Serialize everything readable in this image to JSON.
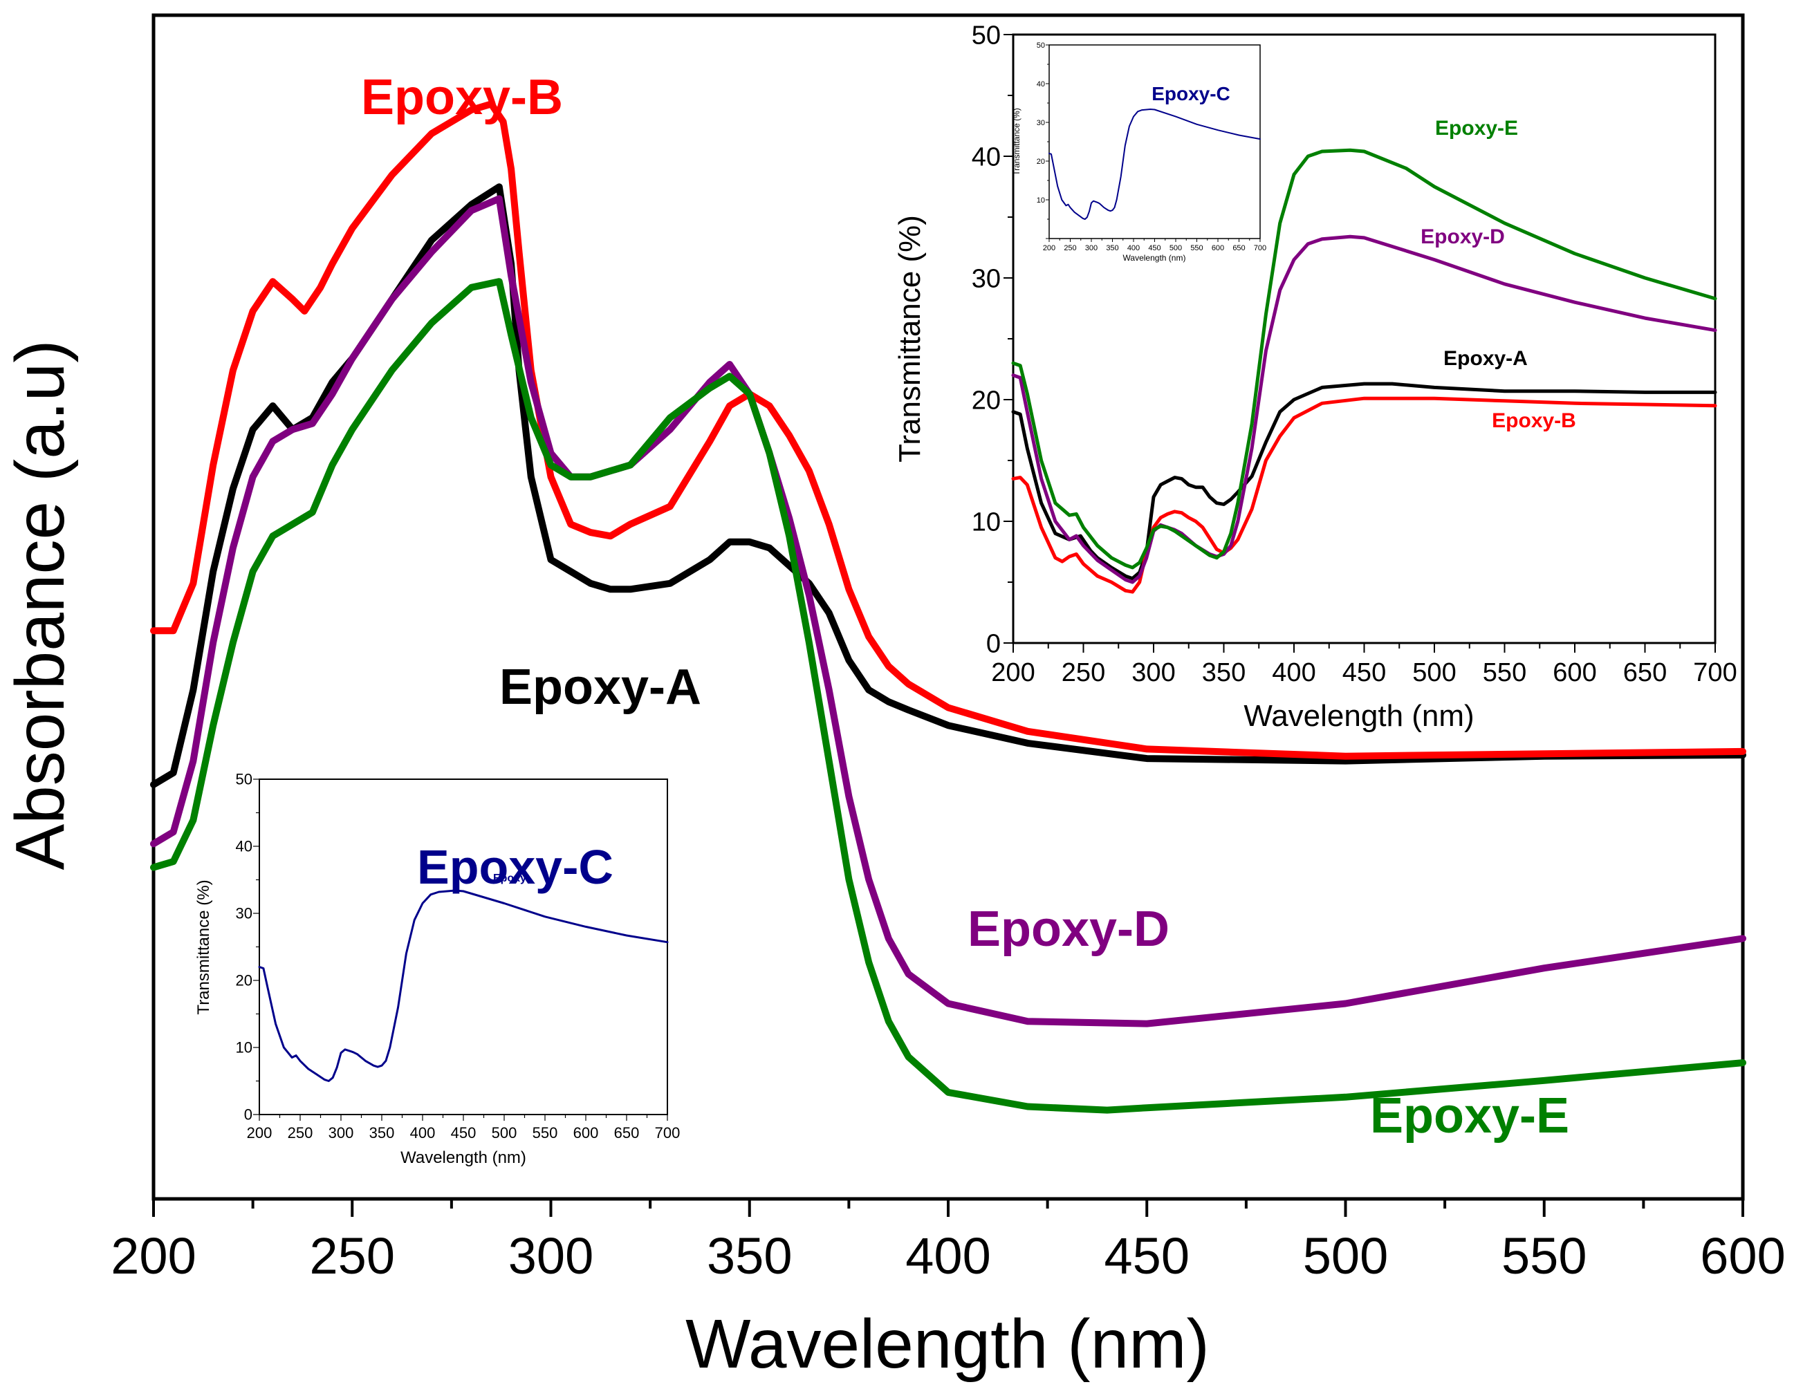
{
  "chart_data": [
    {
      "id": "main",
      "type": "line",
      "title": "",
      "xlabel": "Wavelength (nm)",
      "ylabel": "Absorbance (a.u)",
      "xlim": [
        200,
        600
      ],
      "ylim": [
        0,
        100
      ],
      "grid": false,
      "xticks": [
        200,
        250,
        300,
        350,
        400,
        450,
        500,
        550,
        600
      ],
      "xtick_labels": [
        "200",
        "250",
        "300",
        "350",
        "400",
        "450",
        "500",
        "550",
        "600"
      ],
      "series": [
        {
          "name": "Epoxy-A",
          "label": "Epoxy-A",
          "color": "#000000",
          "x": [
            200,
            205,
            210,
            215,
            220,
            225,
            230,
            235,
            240,
            245,
            250,
            260,
            270,
            280,
            287,
            290,
            292,
            295,
            300,
            305,
            310,
            315,
            320,
            330,
            340,
            345,
            350,
            355,
            360,
            365,
            370,
            375,
            380,
            385,
            390,
            400,
            420,
            450,
            500,
            550,
            600
          ],
          "y": [
            35,
            36,
            43,
            53,
            60,
            65,
            67,
            65,
            66,
            69,
            71,
            76,
            81,
            84,
            85.5,
            79,
            70,
            61,
            54,
            53,
            52,
            51.5,
            51.5,
            52,
            54,
            55.5,
            55.5,
            55,
            53.5,
            52,
            49.5,
            45.5,
            43,
            42,
            41.3,
            40,
            38.5,
            37.2,
            37.0,
            37.4,
            37.5
          ]
        },
        {
          "name": "Epoxy-B",
          "label": "Epoxy-B",
          "color": "#ff0000",
          "x": [
            200,
            205,
            210,
            215,
            220,
            225,
            230,
            235,
            238,
            242,
            245,
            250,
            260,
            270,
            280,
            285,
            288,
            290,
            292,
            295,
            300,
            305,
            310,
            315,
            320,
            330,
            340,
            345,
            350,
            355,
            360,
            365,
            370,
            375,
            380,
            385,
            390,
            400,
            420,
            450,
            500,
            550,
            600
          ],
          "y": [
            48,
            48,
            52,
            62,
            70,
            75,
            77.5,
            76,
            75,
            77,
            79,
            82,
            86.5,
            90,
            92,
            92.5,
            91,
            87,
            80,
            70,
            61,
            57,
            56.3,
            56,
            57,
            58.5,
            64,
            67,
            68,
            67,
            64.5,
            61.5,
            57,
            51.5,
            47.5,
            45,
            43.5,
            41.5,
            39.5,
            38.0,
            37.4,
            37.6,
            37.8
          ]
        },
        {
          "name": "Epoxy-D",
          "label": "Epoxy-D",
          "color": "#800080",
          "x": [
            200,
            205,
            210,
            215,
            220,
            225,
            230,
            235,
            240,
            245,
            250,
            260,
            270,
            280,
            287,
            290,
            295,
            300,
            305,
            310,
            315,
            320,
            330,
            340,
            345,
            350,
            355,
            360,
            365,
            370,
            375,
            380,
            385,
            390,
            400,
            420,
            450,
            500,
            550,
            600
          ],
          "y": [
            30,
            31,
            37,
            47,
            55,
            61,
            64,
            65,
            65.5,
            68,
            71,
            76,
            80,
            83.5,
            84.5,
            78,
            69,
            63,
            61,
            61,
            61.5,
            62,
            65,
            69,
            70.5,
            68,
            63,
            57.5,
            51,
            43,
            34,
            27,
            22,
            19,
            16.5,
            15,
            14.8,
            16.5,
            19.5,
            22
          ]
        },
        {
          "name": "Epoxy-E",
          "label": "Epoxy-E",
          "color": "#008000",
          "x": [
            200,
            205,
            210,
            215,
            220,
            225,
            230,
            235,
            240,
            245,
            250,
            260,
            270,
            280,
            287,
            290,
            295,
            300,
            305,
            310,
            315,
            320,
            330,
            340,
            345,
            350,
            355,
            360,
            365,
            370,
            375,
            380,
            385,
            390,
            400,
            420,
            440,
            450,
            500,
            550,
            600
          ],
          "y": [
            28,
            28.5,
            32,
            40,
            47,
            53,
            56,
            57,
            58,
            62,
            65,
            70,
            74,
            77,
            77.5,
            73,
            66,
            62,
            61,
            61,
            61.5,
            62,
            66,
            68.5,
            69.5,
            68,
            63,
            56,
            47,
            37,
            27,
            20,
            15,
            12,
            9,
            7.8,
            7.5,
            7.7,
            8.6,
            10,
            11.5
          ]
        }
      ],
      "annotations": [
        {
          "text": "Epoxy-B",
          "color": "#ff0000"
        },
        {
          "text": "Epoxy-A",
          "color": "#000000"
        },
        {
          "text": "Epoxy-D",
          "color": "#800080"
        },
        {
          "text": "Epoxy-E",
          "color": "#008000"
        }
      ]
    },
    {
      "id": "inset_top_right",
      "type": "line",
      "title": "",
      "xlabel": "Wavelength (nm)",
      "ylabel": "Transmittance (%)",
      "xlim": [
        200,
        700
      ],
      "ylim": [
        0,
        50
      ],
      "grid": false,
      "xticks": [
        200,
        250,
        300,
        350,
        400,
        450,
        500,
        550,
        600,
        650,
        700
      ],
      "xtick_labels": [
        "200",
        "250",
        "300",
        "350",
        "400",
        "450",
        "500",
        "550",
        "600",
        "650",
        "700"
      ],
      "yticks": [
        0,
        10,
        20,
        30,
        40,
        50
      ],
      "ytick_labels": [
        "0",
        "10",
        "20",
        "30",
        "40",
        "50"
      ],
      "series": [
        {
          "name": "Epoxy-A",
          "label": "Epoxy-A",
          "color": "#000000",
          "x": [
            200,
            205,
            210,
            220,
            230,
            240,
            248,
            255,
            260,
            270,
            280,
            285,
            290,
            295,
            300,
            305,
            310,
            315,
            320,
            325,
            330,
            335,
            340,
            345,
            350,
            355,
            360,
            370,
            380,
            390,
            400,
            420,
            450,
            470,
            500,
            550,
            600,
            650,
            700
          ],
          "y": [
            19,
            18.8,
            16,
            11.5,
            9,
            8.5,
            8.8,
            7.6,
            7,
            6.2,
            5.5,
            5.3,
            5.8,
            7.5,
            12,
            13,
            13.3,
            13.6,
            13.5,
            13,
            12.8,
            12.8,
            12,
            11.5,
            11.4,
            11.8,
            12.4,
            13.7,
            16.5,
            19,
            20,
            21,
            21.3,
            21.3,
            21.0,
            20.7,
            20.7,
            20.6,
            20.6
          ]
        },
        {
          "name": "Epoxy-B",
          "label": "Epoxy-B",
          "color": "#ff0000",
          "x": [
            200,
            205,
            210,
            220,
            230,
            235,
            240,
            245,
            250,
            260,
            270,
            280,
            285,
            290,
            295,
            300,
            305,
            310,
            315,
            320,
            325,
            330,
            335,
            340,
            345,
            350,
            355,
            360,
            370,
            380,
            390,
            400,
            420,
            450,
            500,
            550,
            600,
            650,
            700
          ],
          "y": [
            13.5,
            13.6,
            13,
            9.5,
            7,
            6.7,
            7.1,
            7.3,
            6.5,
            5.5,
            5,
            4.3,
            4.2,
            5,
            7.5,
            9.5,
            10.3,
            10.6,
            10.8,
            10.7,
            10.3,
            10,
            9.5,
            8.6,
            7.7,
            7.4,
            7.8,
            8.5,
            11,
            15,
            17,
            18.5,
            19.7,
            20.1,
            20.1,
            19.9,
            19.7,
            19.6,
            19.5
          ]
        },
        {
          "name": "Epoxy-D",
          "label": "Epoxy-D",
          "color": "#800080",
          "x": [
            200,
            205,
            210,
            220,
            230,
            240,
            245,
            250,
            260,
            270,
            280,
            285,
            290,
            295,
            300,
            305,
            310,
            315,
            320,
            330,
            340,
            345,
            350,
            355,
            360,
            370,
            380,
            390,
            400,
            410,
            420,
            440,
            450,
            500,
            550,
            600,
            650,
            700
          ],
          "y": [
            22,
            21.8,
            19,
            13.5,
            10,
            8.5,
            8.8,
            8,
            6.8,
            6,
            5.2,
            5,
            5.5,
            7,
            9.2,
            9.7,
            9.5,
            9.3,
            9,
            8,
            7.3,
            7.1,
            7.3,
            8,
            10,
            16,
            24,
            29,
            31.5,
            32.8,
            33.2,
            33.4,
            33.3,
            31.5,
            29.5,
            28,
            26.7,
            25.7
          ]
        },
        {
          "name": "Epoxy-E",
          "label": "Epoxy-E",
          "color": "#008000",
          "x": [
            200,
            205,
            210,
            220,
            230,
            240,
            245,
            250,
            260,
            270,
            280,
            285,
            290,
            295,
            300,
            305,
            310,
            315,
            320,
            330,
            340,
            345,
            350,
            355,
            360,
            370,
            380,
            390,
            400,
            410,
            420,
            440,
            450,
            480,
            500,
            550,
            600,
            650,
            700
          ],
          "y": [
            23,
            22.8,
            20.5,
            15,
            11.5,
            10.5,
            10.6,
            9.5,
            8,
            7,
            6.4,
            6.2,
            6.6,
            7.8,
            9.3,
            9.6,
            9.5,
            9.2,
            8.8,
            8,
            7.2,
            7,
            7.5,
            9,
            11.5,
            18,
            27,
            34.5,
            38.5,
            40,
            40.4,
            40.5,
            40.4,
            39,
            37.5,
            34.5,
            32,
            30,
            28.3
          ]
        }
      ],
      "annotations": [
        {
          "text": "Epoxy-E",
          "color": "#008000"
        },
        {
          "text": "Epoxy-D",
          "color": "#800080"
        },
        {
          "text": "Epoxy-A",
          "color": "#000000"
        },
        {
          "text": "Epoxy-B",
          "color": "#ff0000"
        }
      ]
    },
    {
      "id": "inset_small_top",
      "type": "line",
      "title": "",
      "xlabel": "Wavelength (nm)",
      "ylabel": "Transmittance (%)",
      "xlim": [
        200,
        700
      ],
      "ylim": [
        0,
        50
      ],
      "grid": false,
      "xticks": [
        200,
        250,
        300,
        350,
        400,
        450,
        500,
        550,
        600,
        650,
        700
      ],
      "xtick_labels": [
        "200",
        "250",
        "300",
        "350",
        "400",
        "450",
        "500",
        "550",
        "600",
        "650",
        "700"
      ],
      "yticks": [
        10,
        20,
        30,
        40,
        50
      ],
      "ytick_labels": [
        "10",
        "20",
        "30",
        "40",
        "50"
      ],
      "series": [
        {
          "name": "Epoxy-C",
          "label": "Epoxy-C",
          "color": "#00008b",
          "x": [
            200,
            205,
            210,
            220,
            230,
            240,
            245,
            250,
            260,
            270,
            280,
            285,
            290,
            295,
            300,
            305,
            310,
            315,
            320,
            330,
            340,
            345,
            350,
            355,
            360,
            370,
            380,
            390,
            400,
            410,
            420,
            440,
            450,
            500,
            550,
            600,
            650,
            700
          ],
          "y": [
            22,
            21.8,
            19,
            13.5,
            10,
            8.5,
            8.8,
            8,
            6.8,
            6,
            5.2,
            5,
            5.5,
            7,
            9.2,
            9.7,
            9.5,
            9.3,
            9,
            8,
            7.3,
            7.1,
            7.3,
            8,
            10,
            16,
            24,
            29,
            31.5,
            32.8,
            33.2,
            33.4,
            33.3,
            31.5,
            29.5,
            28,
            26.7,
            25.7
          ]
        }
      ],
      "annotations": [
        {
          "text": "Epoxy-C",
          "color": "#00008b"
        }
      ]
    },
    {
      "id": "inset_bottom_left",
      "type": "line",
      "title": "",
      "xlabel": "Wavelength (nm)",
      "ylabel": "Transmittance (%)",
      "xlim": [
        200,
        700
      ],
      "ylim": [
        0,
        50
      ],
      "grid": false,
      "xticks": [
        200,
        250,
        300,
        350,
        400,
        450,
        500,
        550,
        600,
        650,
        700
      ],
      "xtick_labels": [
        "200",
        "250",
        "300",
        "350",
        "400",
        "450",
        "500",
        "550",
        "600",
        "650",
        "700"
      ],
      "yticks": [
        0,
        10,
        20,
        30,
        40,
        50
      ],
      "ytick_labels": [
        "0",
        "10",
        "20",
        "30",
        "40",
        "50"
      ],
      "series": [
        {
          "name": "Epoxy-C",
          "label": "Epoxy-C",
          "color": "#00008b",
          "x": [
            200,
            205,
            210,
            220,
            230,
            240,
            245,
            250,
            260,
            270,
            280,
            285,
            290,
            295,
            300,
            305,
            310,
            315,
            320,
            330,
            340,
            345,
            350,
            355,
            360,
            370,
            380,
            390,
            400,
            410,
            420,
            440,
            450,
            500,
            550,
            600,
            650,
            700
          ],
          "y": [
            22,
            21.8,
            19,
            13.5,
            10,
            8.5,
            8.8,
            8,
            6.8,
            6,
            5.2,
            5,
            5.5,
            7,
            9.2,
            9.7,
            9.5,
            9.3,
            9,
            8,
            7.3,
            7.1,
            7.3,
            8,
            10,
            16,
            24,
            29,
            31.5,
            32.8,
            33.2,
            33.4,
            33.3,
            31.5,
            29.5,
            28,
            26.7,
            25.7
          ]
        }
      ],
      "annotations": [
        {
          "text": "Epoxy-C",
          "color": "#00008b"
        },
        {
          "text": "Epoxy",
          "color": "#00008b"
        }
      ]
    }
  ]
}
